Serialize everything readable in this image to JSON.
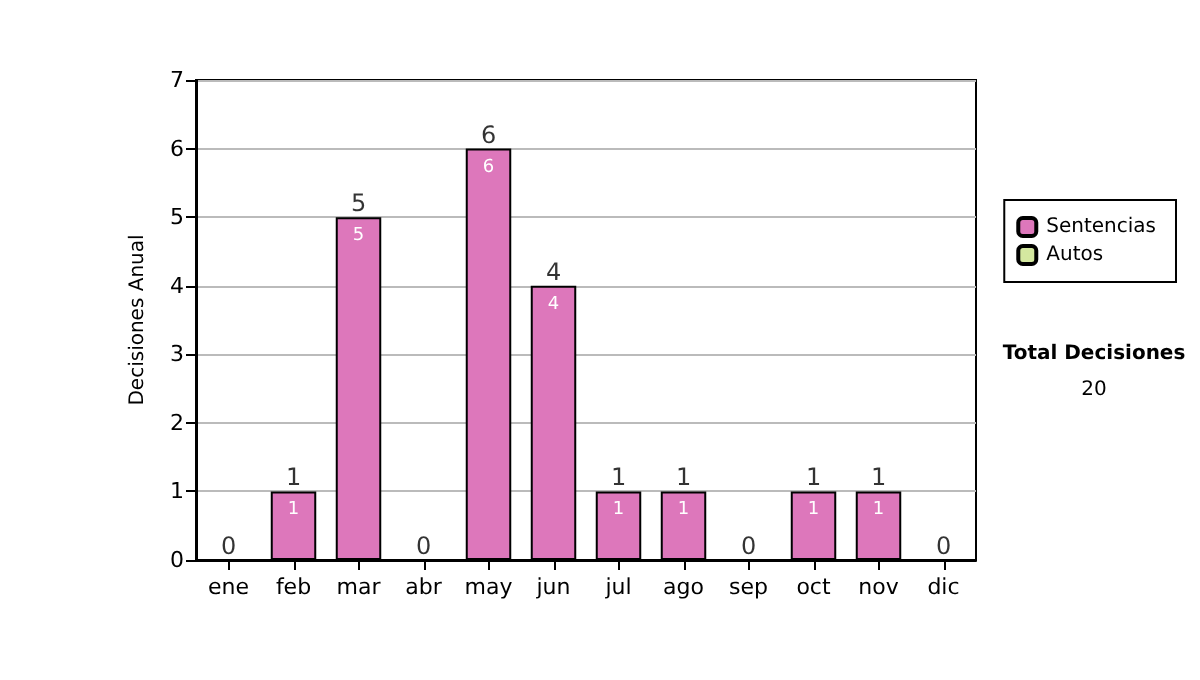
{
  "chart_data": {
    "type": "bar",
    "stacked": true,
    "ylabel": "Decisiones Anual",
    "categories": [
      "ene",
      "feb",
      "mar",
      "abr",
      "may",
      "jun",
      "jul",
      "ago",
      "sep",
      "oct",
      "nov",
      "dic"
    ],
    "series": [
      {
        "name": "Sentencias",
        "color": "#dd77bb",
        "values": [
          0,
          1,
          5,
          0,
          6,
          4,
          1,
          1,
          0,
          1,
          1,
          0
        ],
        "value_labels": [
          null,
          "1",
          "5",
          null,
          "6",
          "4",
          "1",
          "1",
          null,
          "1",
          "1",
          null
        ]
      },
      {
        "name": "Autos",
        "color": "#d4e8a0",
        "values": [
          0,
          0,
          0,
          0,
          0,
          0,
          0,
          0,
          0,
          0,
          0,
          0
        ]
      }
    ],
    "totals": [
      "0",
      "1",
      "5",
      "0",
      "6",
      "4",
      "1",
      "1",
      "0",
      "1",
      "1",
      "0"
    ],
    "ylim": [
      0,
      7
    ],
    "yticks": [
      0,
      1,
      2,
      3,
      4,
      5,
      6,
      7
    ],
    "grid": "y",
    "legend": "right",
    "annotations": [
      "Total Decisiones",
      "20"
    ]
  }
}
